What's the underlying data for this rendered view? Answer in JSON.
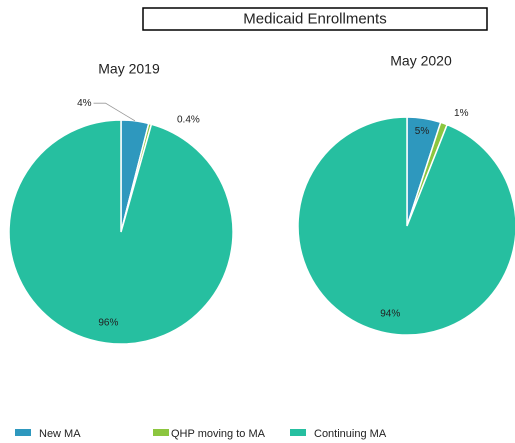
{
  "title": "Medicaid Enrollments",
  "chart_data": [
    {
      "type": "pie",
      "title": "May 2019",
      "categories": [
        "New MA",
        "QHP moving to MA",
        "Continuing MA"
      ],
      "values": [
        4,
        0.4,
        96
      ],
      "value_labels": [
        "4%",
        "0.4%",
        "96%"
      ],
      "colors": [
        "#2e98be",
        "#8cc63f",
        "#26bfa0"
      ]
    },
    {
      "type": "pie",
      "title": "May 2020",
      "categories": [
        "New MA",
        "QHP moving to MA",
        "Continuing MA"
      ],
      "values": [
        5,
        1,
        94
      ],
      "value_labels": [
        "5%",
        "1%",
        "94%"
      ],
      "colors": [
        "#2e98be",
        "#8cc63f",
        "#26bfa0"
      ]
    }
  ]
}
